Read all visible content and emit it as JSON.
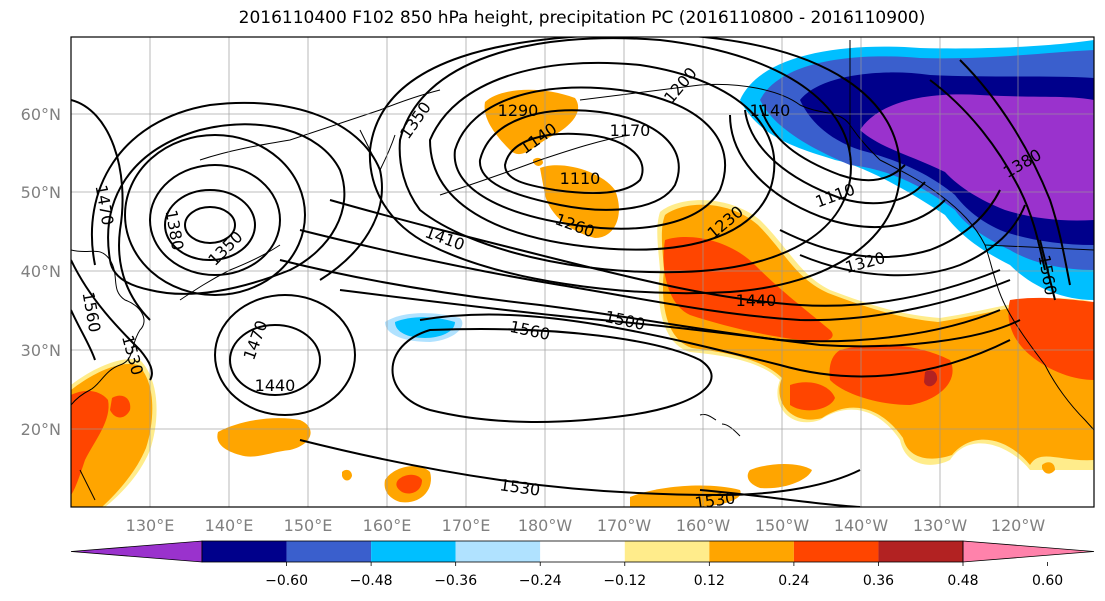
{
  "title": "2016110400 F102 850 hPa height, precipitation PC (2016110800 - 2016110900)",
  "colors": {
    "purple": "#9a32cd",
    "navy": "#00008b",
    "royal_blue": "#3a5fcd",
    "deep_sky_blue": "#00bfff",
    "light_blue": "#b0e2ff",
    "white": "#ffffff",
    "light_yellow": "#ffec8b",
    "orange": "#ffa500",
    "orange_red": "#ff4500",
    "firebrick": "#b22222",
    "pink": "#ff82ab"
  },
  "lat_labels": [
    "60°N",
    "50°N",
    "40°N",
    "30°N",
    "20°N"
  ],
  "lon_labels": [
    "130°E",
    "140°E",
    "150°E",
    "160°E",
    "170°E",
    "180°W",
    "170°W",
    "160°W",
    "150°W",
    "140°W",
    "130°W",
    "120°W"
  ],
  "contour_labels": [
    "1290",
    "1140",
    "1170",
    "1200",
    "1140",
    "1110",
    "1110",
    "1260",
    "1230",
    "1320",
    "1380",
    "1410",
    "1350",
    "1470",
    "1560",
    "1530",
    "1560",
    "1500",
    "1440",
    "1470",
    "1440",
    "1530",
    "1530",
    "1560",
    "1350",
    "1380"
  ],
  "colorbar": {
    "tick_labels": [
      "−0.60",
      "−0.48",
      "−0.36",
      "−0.24",
      "−0.12",
      "0.12",
      "0.24",
      "0.36",
      "0.48",
      "0.60"
    ],
    "bins": [
      "purple",
      "navy",
      "royal_blue",
      "deep_sky_blue",
      "light_blue",
      "white",
      "light_yellow",
      "orange",
      "orange_red",
      "firebrick",
      "pink"
    ]
  }
}
